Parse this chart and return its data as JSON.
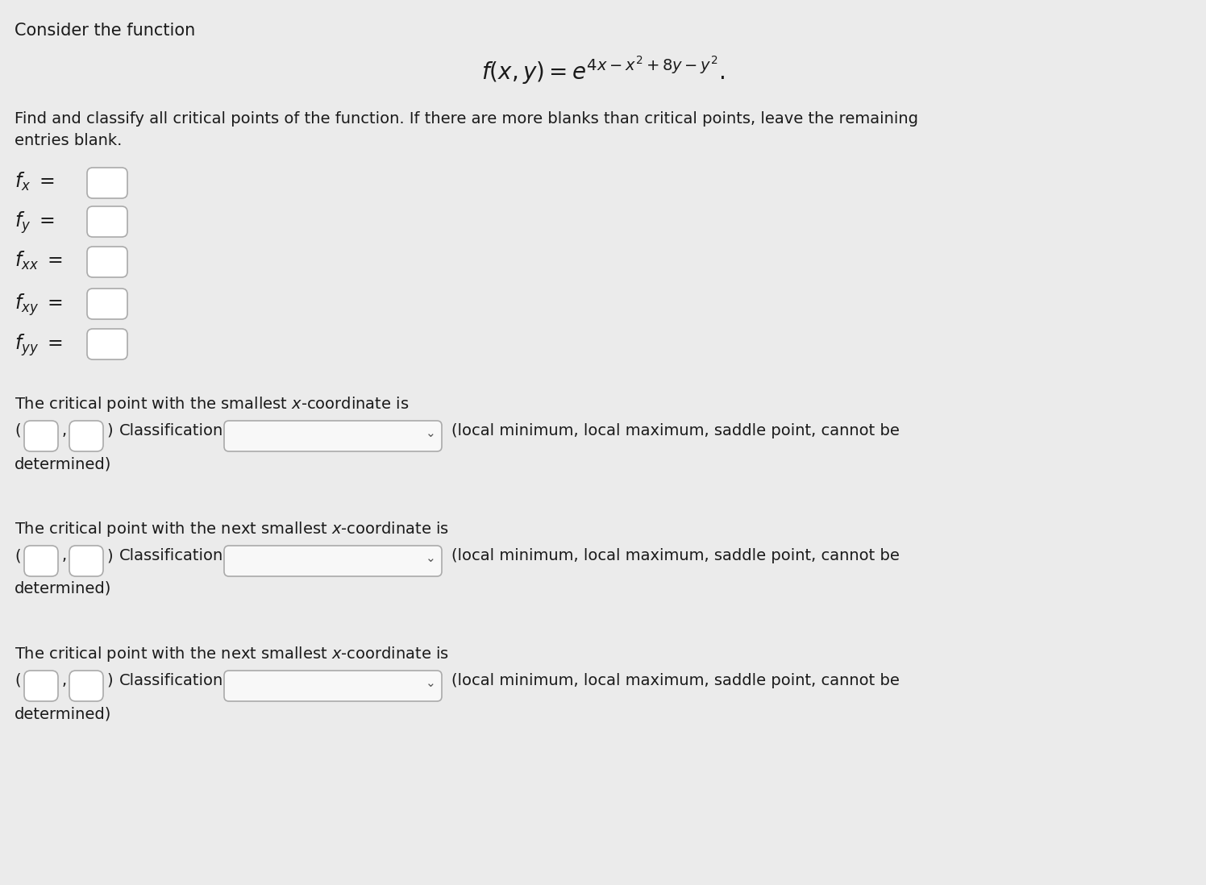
{
  "background_color": "#ebebeb",
  "title_text": "Consider the function",
  "formula": "$f(x, y) = e^{4x-x^2+8y-y^2}.$",
  "instruction_line1": "Find and classify all critical points of the function. If there are more blanks than critical points, leave the remaining",
  "instruction_line2": "entries blank.",
  "partial_labels": [
    "$f_x$",
    "$f_y$",
    "$f_{xx}$",
    "$f_{xy}$",
    "$f_{yy}$"
  ],
  "critical_point_labels": [
    "The critical point with the smallest $x$-coordinate is",
    "The critical point with the next smallest $x$-coordinate is",
    "The critical point with the next smallest $x$-coordinate is"
  ],
  "text_color": "#1a1a1a",
  "box_color": "#ffffff",
  "box_border_color": "#aaaaaa",
  "dropdown_color": "#f8f8f8",
  "font_size_title": 15,
  "font_size_body": 14,
  "font_size_formula": 20,
  "font_size_partial": 17
}
